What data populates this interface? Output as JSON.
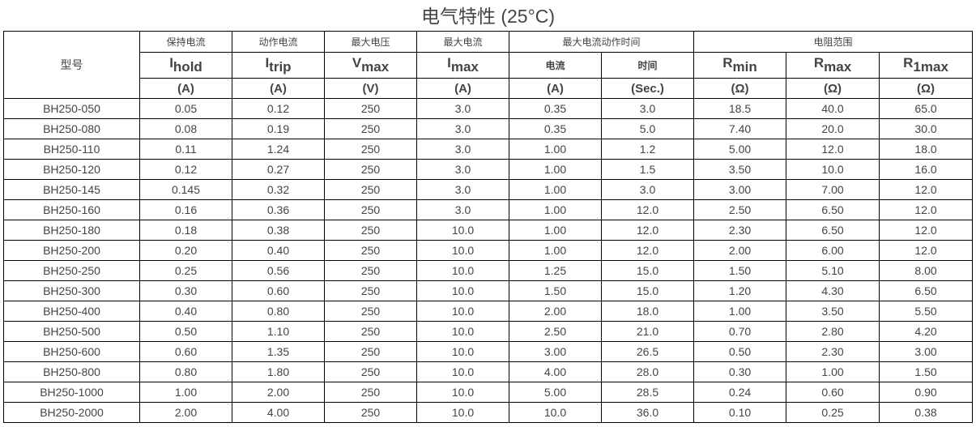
{
  "title": "电气特性 (25°C)",
  "header": {
    "model": "型号",
    "groups": {
      "hold": "保持电流",
      "trip": "动作电流",
      "vmax": "最大电压",
      "imax": "最大电流",
      "time_to_trip": "最大电流动作时间",
      "resistance": "电阻范围"
    },
    "symbols": [
      {
        "main": "I",
        "sub": "hold"
      },
      {
        "main": "I",
        "sub": "trip"
      },
      {
        "main": "V",
        "sub": "max"
      },
      {
        "main": "I",
        "sub": "max"
      },
      {
        "main": "电流",
        "sub": ""
      },
      {
        "main": "时间",
        "sub": ""
      },
      {
        "main": "R",
        "sub": "min"
      },
      {
        "main": "R",
        "sub": "max"
      },
      {
        "main": "R",
        "sub": "1max"
      }
    ],
    "units": [
      "(A)",
      "(A)",
      "(V)",
      "(A)",
      "(A)",
      "(Sec.)",
      "(Ω)",
      "(Ω)",
      "(Ω)"
    ]
  },
  "rows": [
    [
      "BH250-050",
      "0.05",
      "0.12",
      "250",
      "3.0",
      "0.35",
      "3.0",
      "18.5",
      "40.0",
      "65.0"
    ],
    [
      "BH250-080",
      "0.08",
      "0.19",
      "250",
      "3.0",
      "0.35",
      "5.0",
      "7.40",
      "20.0",
      "30.0"
    ],
    [
      "BH250-110",
      "0.11",
      "1.24",
      "250",
      "3.0",
      "1.00",
      "1.2",
      "5.00",
      "12.0",
      "18.0"
    ],
    [
      "BH250-120",
      "0.12",
      "0.27",
      "250",
      "3.0",
      "1.00",
      "1.5",
      "3.50",
      "10.0",
      "16.0"
    ],
    [
      "BH250-145",
      "0.145",
      "0.32",
      "250",
      "3.0",
      "1.00",
      "3.0",
      "3.00",
      "7.00",
      "12.0"
    ],
    [
      "BH250-160",
      "0.16",
      "0.36",
      "250",
      "3.0",
      "1.00",
      "12.0",
      "2.50",
      "6.50",
      "12.0"
    ],
    [
      "BH250-180",
      "0.18",
      "0.38",
      "250",
      "10.0",
      "1.00",
      "12.0",
      "2.30",
      "6.50",
      "12.0"
    ],
    [
      "BH250-200",
      "0.20",
      "0.40",
      "250",
      "10.0",
      "1.00",
      "12.0",
      "2.00",
      "6.00",
      "12.0"
    ],
    [
      "BH250-250",
      "0.25",
      "0.56",
      "250",
      "10.0",
      "1.25",
      "15.0",
      "1.50",
      "5.10",
      "8.00"
    ],
    [
      "BH250-300",
      "0.30",
      "0.60",
      "250",
      "10.0",
      "1.50",
      "15.0",
      "1.20",
      "4.30",
      "6.50"
    ],
    [
      "BH250-400",
      "0.40",
      "0.80",
      "250",
      "10.0",
      "2.00",
      "18.0",
      "1.00",
      "3.50",
      "5.50"
    ],
    [
      "BH250-500",
      "0.50",
      "1.10",
      "250",
      "10.0",
      "2.50",
      "21.0",
      "0.70",
      "2.80",
      "4.20"
    ],
    [
      "BH250-600",
      "0.60",
      "1.35",
      "250",
      "10.0",
      "3.00",
      "26.5",
      "0.50",
      "2.30",
      "3.00"
    ],
    [
      "BH250-800",
      "0.80",
      "1.80",
      "250",
      "10.0",
      "4.00",
      "28.0",
      "0.30",
      "1.00",
      "1.50"
    ],
    [
      "BH250-1000",
      "1.00",
      "2.00",
      "250",
      "10.0",
      "5.00",
      "28.5",
      "0.24",
      "0.60",
      "0.90"
    ],
    [
      "BH250-2000",
      "2.00",
      "4.00",
      "250",
      "10.0",
      "10.0",
      "36.0",
      "0.10",
      "0.25",
      "0.38"
    ]
  ]
}
